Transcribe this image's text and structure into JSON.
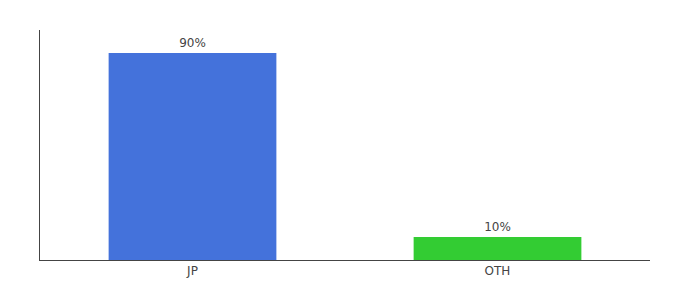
{
  "chart_data": {
    "type": "bar",
    "categories": [
      "JP",
      "OTH"
    ],
    "values": [
      90,
      10
    ],
    "value_labels": [
      "90%",
      "10%"
    ],
    "data_labels": true,
    "colors": [
      "#4472db",
      "#33cc33"
    ],
    "ylim": [
      0,
      100
    ],
    "tick_labels": "x",
    "grid": false
  }
}
